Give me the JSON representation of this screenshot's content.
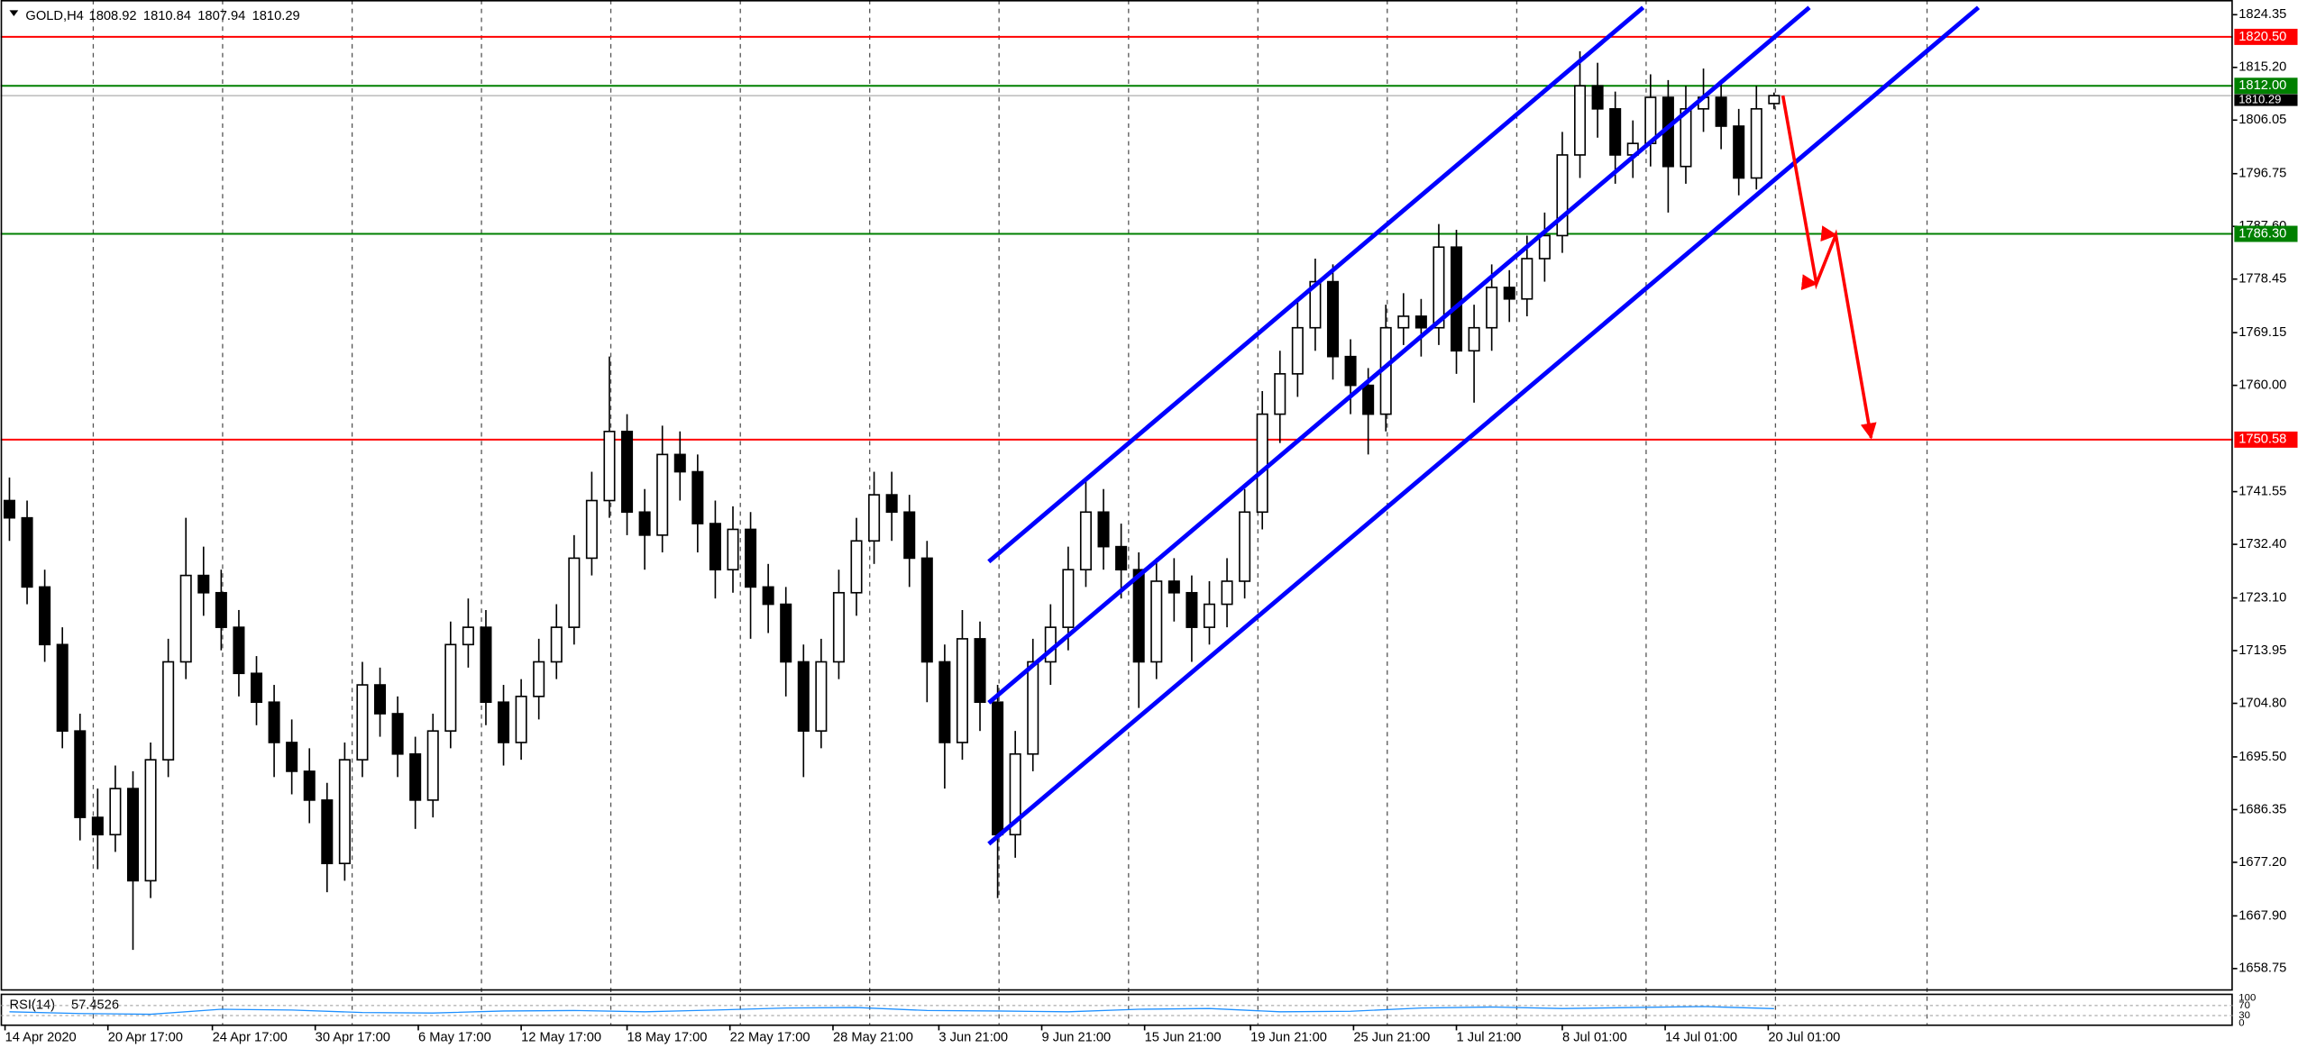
{
  "chart_data": {
    "type": "candlestick",
    "symbol": "GOLD,H4",
    "xlim": [
      -0.5,
      126
    ],
    "ylim": [
      1655.17,
      1826.9
    ],
    "grid": "vertical",
    "xgrid": [
      4.75,
      12.08,
      19.42,
      26.75,
      34.08,
      41.42,
      48.75,
      56.08,
      63.42,
      70.75,
      78.08,
      85.42,
      92.75,
      100.08,
      108.67
    ],
    "xticks": [
      {
        "value": -0.25,
        "label": "14 Apr 2020"
      },
      {
        "value": 5.58,
        "label": "20 Apr 17:00"
      },
      {
        "value": 11.5,
        "label": "24 Apr 17:00"
      },
      {
        "value": 17.33,
        "label": "30 Apr 17:00"
      },
      {
        "value": 23.17,
        "label": "6 May 17:00"
      },
      {
        "value": 29,
        "label": "12 May 17:00"
      },
      {
        "value": 35,
        "label": "18 May 17:00"
      },
      {
        "value": 40.83,
        "label": "22 May 17:00"
      },
      {
        "value": 46.67,
        "label": "28 May 21:00"
      },
      {
        "value": 52.67,
        "label": "3 Jun 21:00"
      },
      {
        "value": 58.5,
        "label": "9 Jun 21:00"
      },
      {
        "value": 64.33,
        "label": "15 Jun 21:00"
      },
      {
        "value": 70.33,
        "label": "19 Jun 21:00"
      },
      {
        "value": 76.17,
        "label": "25 Jun 21:00"
      },
      {
        "value": 82,
        "label": "1 Jul 21:00"
      },
      {
        "value": 88,
        "label": "8 Jul 01:00"
      },
      {
        "value": 93.83,
        "label": "14 Jul 01:00"
      },
      {
        "value": 99.67,
        "label": "20 Jul 01:00"
      }
    ],
    "yticks": [
      1824.35,
      {
        "value": 1815.2,
        "label": "1815.20"
      },
      1806.05,
      1796.75,
      {
        "value": 1787.6,
        "label": "1787.60"
      },
      1778.45,
      1769.15,
      {
        "value": 1760,
        "label": "1760.00"
      },
      1741.55,
      {
        "value": 1732.4,
        "label": "1732.40"
      },
      {
        "value": 1723.1,
        "label": "1723.10"
      },
      1713.95,
      {
        "value": 1704.8,
        "label": "1704.80"
      },
      {
        "value": 1695.5,
        "label": "1695.50"
      },
      1686.35,
      {
        "value": 1677.2,
        "label": "1677.20"
      },
      {
        "value": 1667.9,
        "label": "1667.90"
      },
      1658.75
    ],
    "ohlc": [
      [
        1740,
        1744,
        1733,
        1737
      ],
      [
        1737,
        1740,
        1722,
        1725
      ],
      [
        1725,
        1728,
        1712,
        1715
      ],
      [
        1715,
        1718,
        1697,
        1700
      ],
      [
        1700,
        1703,
        1681,
        1685
      ],
      [
        1685,
        1690,
        1676,
        1682
      ],
      [
        1682,
        1694,
        1679,
        1690
      ],
      [
        1690,
        1693,
        1662,
        1674
      ],
      [
        1674,
        1698,
        1671,
        1695
      ],
      [
        1695,
        1716,
        1692,
        1712
      ],
      [
        1712,
        1737,
        1709,
        1727
      ],
      [
        1727,
        1732,
        1720,
        1724
      ],
      [
        1724,
        1728,
        1714,
        1718
      ],
      [
        1718,
        1721,
        1706,
        1710
      ],
      [
        1710,
        1713,
        1701,
        1705
      ],
      [
        1705,
        1708,
        1692,
        1698
      ],
      [
        1698,
        1702,
        1689,
        1693
      ],
      [
        1693,
        1697,
        1684,
        1688
      ],
      [
        1688,
        1691,
        1672,
        1677
      ],
      [
        1677,
        1698,
        1674,
        1695
      ],
      [
        1695,
        1712,
        1692,
        1708
      ],
      [
        1708,
        1711,
        1699,
        1703
      ],
      [
        1703,
        1706,
        1692,
        1696
      ],
      [
        1696,
        1699,
        1683,
        1688
      ],
      [
        1688,
        1703,
        1685,
        1700
      ],
      [
        1700,
        1719,
        1697,
        1715
      ],
      [
        1715,
        1723,
        1711,
        1718
      ],
      [
        1718,
        1721,
        1701,
        1705
      ],
      [
        1705,
        1708,
        1694,
        1698
      ],
      [
        1698,
        1709,
        1695,
        1706
      ],
      [
        1706,
        1716,
        1702,
        1712
      ],
      [
        1712,
        1722,
        1709,
        1718
      ],
      [
        1718,
        1734,
        1715,
        1730
      ],
      [
        1730,
        1745,
        1727,
        1740
      ],
      [
        1740,
        1765,
        1737,
        1752
      ],
      [
        1752,
        1755,
        1734,
        1738
      ],
      [
        1738,
        1742,
        1728,
        1734
      ],
      [
        1734,
        1753,
        1731,
        1748
      ],
      [
        1748,
        1752,
        1740,
        1745
      ],
      [
        1745,
        1748,
        1731,
        1736
      ],
      [
        1736,
        1740,
        1723,
        1728
      ],
      [
        1728,
        1739,
        1724,
        1735
      ],
      [
        1735,
        1738,
        1716,
        1725
      ],
      [
        1725,
        1729,
        1717,
        1722
      ],
      [
        1722,
        1725,
        1706,
        1712
      ],
      [
        1712,
        1715,
        1692,
        1700
      ],
      [
        1700,
        1716,
        1697,
        1712
      ],
      [
        1712,
        1728,
        1709,
        1724
      ],
      [
        1724,
        1737,
        1720,
        1733
      ],
      [
        1733,
        1745,
        1729,
        1741
      ],
      [
        1741,
        1745,
        1733,
        1738
      ],
      [
        1738,
        1741,
        1725,
        1730
      ],
      [
        1730,
        1733,
        1705,
        1712
      ],
      [
        1712,
        1715,
        1690,
        1698
      ],
      [
        1698,
        1721,
        1695,
        1716
      ],
      [
        1716,
        1719,
        1700,
        1705
      ],
      [
        1705,
        1708,
        1671,
        1682
      ],
      [
        1682,
        1700,
        1678,
        1696
      ],
      [
        1696,
        1716,
        1693,
        1712
      ],
      [
        1712,
        1722,
        1708,
        1718
      ],
      [
        1718,
        1732,
        1714,
        1728
      ],
      [
        1728,
        1744,
        1725,
        1738
      ],
      [
        1738,
        1742,
        1728,
        1732
      ],
      [
        1732,
        1736,
        1723,
        1728
      ],
      [
        1728,
        1731,
        1704,
        1712
      ],
      [
        1712,
        1730,
        1709,
        1726
      ],
      [
        1726,
        1730,
        1719,
        1724
      ],
      [
        1724,
        1727,
        1712,
        1718
      ],
      [
        1718,
        1726,
        1715,
        1722
      ],
      [
        1722,
        1730,
        1718,
        1726
      ],
      [
        1726,
        1742,
        1723,
        1738
      ],
      [
        1738,
        1759,
        1735,
        1755
      ],
      [
        1755,
        1766,
        1750,
        1762
      ],
      [
        1762,
        1775,
        1758,
        1770
      ],
      [
        1770,
        1782,
        1766,
        1778
      ],
      [
        1778,
        1781,
        1761,
        1765
      ],
      [
        1765,
        1768,
        1755,
        1760
      ],
      [
        1760,
        1763,
        1748,
        1755
      ],
      [
        1755,
        1774,
        1752,
        1770
      ],
      [
        1770,
        1776,
        1767,
        1772
      ],
      [
        1772,
        1775,
        1765,
        1770
      ],
      [
        1770,
        1788,
        1767,
        1784
      ],
      [
        1784,
        1787,
        1762,
        1766
      ],
      [
        1766,
        1774,
        1757,
        1770
      ],
      [
        1770,
        1781,
        1766,
        1777
      ],
      [
        1777,
        1780,
        1771,
        1775
      ],
      [
        1775,
        1786,
        1772,
        1782
      ],
      [
        1782,
        1790,
        1778,
        1786
      ],
      [
        1786,
        1804,
        1783,
        1800
      ],
      [
        1800,
        1818,
        1796,
        1812
      ],
      [
        1812,
        1816,
        1803,
        1808
      ],
      [
        1808,
        1811,
        1795,
        1800
      ],
      [
        1800,
        1806,
        1796,
        1802
      ],
      [
        1802,
        1814,
        1798,
        1810
      ],
      [
        1810,
        1813,
        1790,
        1798
      ],
      [
        1798,
        1812,
        1795,
        1808
      ],
      [
        1808,
        1815,
        1804,
        1810
      ],
      [
        1810,
        1813,
        1801,
        1805
      ],
      [
        1805,
        1808,
        1793,
        1796
      ],
      [
        1796,
        1812,
        1794,
        1808
      ],
      [
        1808.92,
        1810.84,
        1807.94,
        1810.29
      ]
    ],
    "hlines": [
      {
        "value": 1820.5,
        "label": "1820.50",
        "color": "#ff0000"
      },
      {
        "value": 1812,
        "label": "1812.00",
        "color": "#008000"
      },
      {
        "value": 1786.3,
        "label": "1786.30",
        "color": "#008000"
      },
      {
        "value": 1750.58,
        "label": "1750.58",
        "color": "#ff0000"
      }
    ],
    "trendlines": [
      {
        "color": "#0000ff",
        "x": [
          55.5,
          92.58
        ],
        "y": [
          1729.4,
          1825.6
        ]
      },
      {
        "color": "#0000ff",
        "x": [
          55.5,
          102
        ],
        "y": [
          1704.9,
          1825.6
        ]
      },
      {
        "color": "#0000ff",
        "x": [
          55.5,
          111.58
        ],
        "y": [
          1680.4,
          1825.6
        ]
      }
    ],
    "projection": {
      "color": "#ff0000",
      "x": [
        100.5,
        102.4,
        103.5,
        105.5
      ],
      "y": [
        1810.3,
        1777.65,
        1786.1,
        1750.9
      ]
    },
    "rsi": {
      "name": "RSI(14)",
      "color": "#1e90ff",
      "ylim": [
        0,
        100
      ],
      "yticks": [
        0,
        30,
        70,
        100
      ],
      "x": [
        0,
        4,
        8,
        12,
        16,
        20,
        24,
        28,
        32,
        36,
        40,
        44,
        48,
        52,
        56,
        60,
        64,
        68,
        72,
        76,
        80,
        84,
        88,
        92,
        96,
        100
      ],
      "values": [
        45,
        38,
        35,
        55,
        52,
        42,
        40,
        48,
        50,
        45,
        52,
        60,
        62,
        50,
        48,
        45,
        55,
        58,
        45,
        47,
        60,
        64,
        58,
        62,
        66,
        57.4526
      ]
    }
  }
}
